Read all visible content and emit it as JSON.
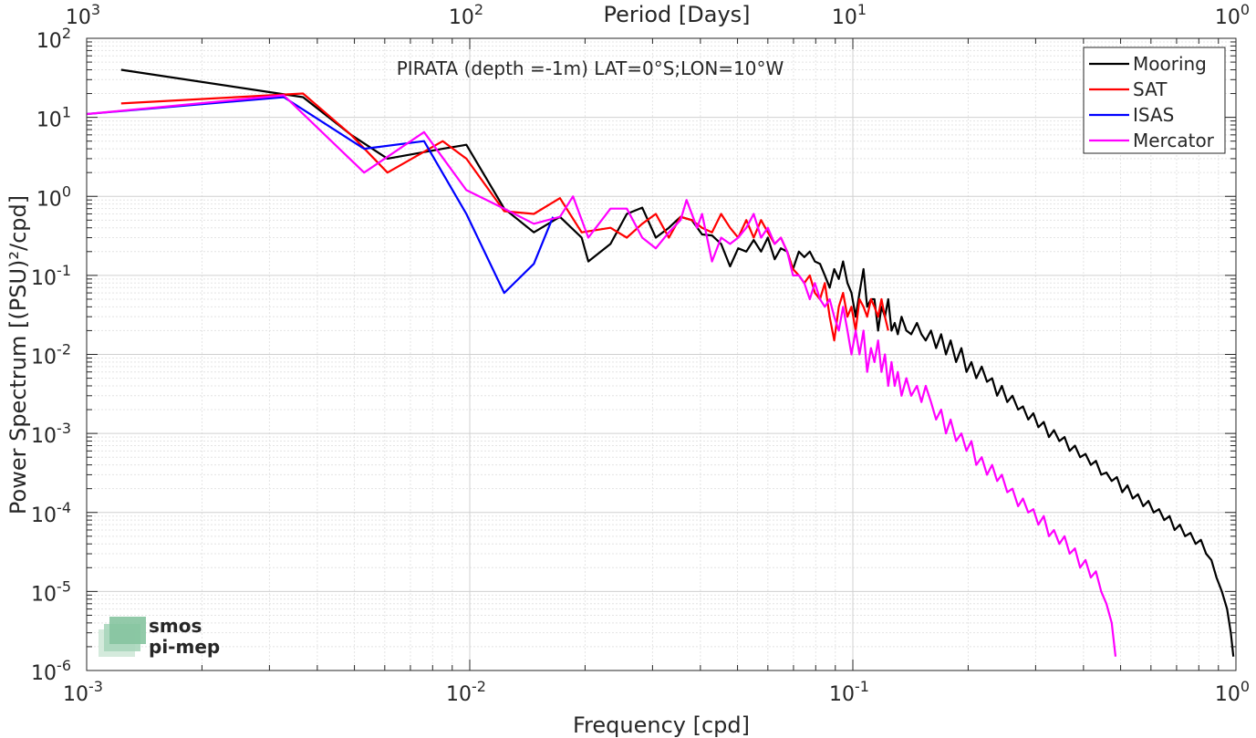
{
  "chart_data": {
    "type": "line",
    "title": "PIRATA (depth =-1m) LAT=0°S;LON=10°W",
    "xlabel": "Frequency [cpd]",
    "ylabel": "Power Spectrum [(PSU)²/cpd]",
    "top_xlabel": "Period [Days]",
    "xscale": "log",
    "yscale": "log",
    "xlim": [
      0.001,
      1
    ],
    "ylim": [
      1e-06,
      100
    ],
    "grid": true,
    "minor_grid": true,
    "legend_position": "top-right",
    "x_ticks": [
      {
        "value": 0.001,
        "base": "10",
        "exp": "-3"
      },
      {
        "value": 0.01,
        "base": "10",
        "exp": "-2"
      },
      {
        "value": 0.1,
        "base": "10",
        "exp": "-1"
      },
      {
        "value": 1,
        "base": "10",
        "exp": "0"
      }
    ],
    "top_x_ticks": [
      {
        "value": 0.001,
        "base": "10",
        "exp": "3"
      },
      {
        "value": 0.01,
        "base": "10",
        "exp": "2"
      },
      {
        "value": 0.1,
        "base": "10",
        "exp": "1"
      },
      {
        "value": 1,
        "base": "10",
        "exp": "0"
      }
    ],
    "y_ticks": [
      {
        "value": 100,
        "base": "10",
        "exp": "2"
      },
      {
        "value": 10,
        "base": "10",
        "exp": "1"
      },
      {
        "value": 1,
        "base": "10",
        "exp": "0"
      },
      {
        "value": 0.1,
        "base": "10",
        "exp": "-1"
      },
      {
        "value": 0.01,
        "base": "10",
        "exp": "-2"
      },
      {
        "value": 0.001,
        "base": "10",
        "exp": "-3"
      },
      {
        "value": 0.0001,
        "base": "10",
        "exp": "-4"
      },
      {
        "value": 1e-05,
        "base": "10",
        "exp": "-5"
      },
      {
        "value": 1e-06,
        "base": "10",
        "exp": "-6"
      }
    ],
    "series": [
      {
        "name": "Mooring",
        "color": "#000000",
        "points": [
          [
            0.00123,
            40
          ],
          [
            0.00367,
            18
          ],
          [
            0.0049,
            6
          ],
          [
            0.0061,
            3
          ],
          [
            0.0085,
            4
          ],
          [
            0.0098,
            4.5
          ],
          [
            0.0123,
            0.7
          ],
          [
            0.0147,
            0.35
          ],
          [
            0.0172,
            0.55
          ],
          [
            0.0196,
            0.3
          ],
          [
            0.0204,
            0.15
          ],
          [
            0.0233,
            0.25
          ],
          [
            0.0257,
            0.6
          ],
          [
            0.0282,
            0.72
          ],
          [
            0.0306,
            0.3
          ],
          [
            0.0331,
            0.4
          ],
          [
            0.0355,
            0.55
          ],
          [
            0.038,
            0.5
          ],
          [
            0.0404,
            0.33
          ],
          [
            0.0429,
            0.32
          ],
          [
            0.0453,
            0.25
          ],
          [
            0.0478,
            0.13
          ],
          [
            0.0502,
            0.22
          ],
          [
            0.0527,
            0.2
          ],
          [
            0.0551,
            0.28
          ],
          [
            0.0576,
            0.2
          ],
          [
            0.06,
            0.3
          ],
          [
            0.0625,
            0.16
          ],
          [
            0.0649,
            0.22
          ],
          [
            0.0674,
            0.2
          ],
          [
            0.0698,
            0.12
          ],
          [
            0.0723,
            0.2
          ],
          [
            0.0747,
            0.17
          ],
          [
            0.0772,
            0.2
          ],
          [
            0.0796,
            0.15
          ],
          [
            0.0821,
            0.14
          ],
          [
            0.0845,
            0.1
          ],
          [
            0.087,
            0.07
          ],
          [
            0.0894,
            0.12
          ],
          [
            0.0919,
            0.09
          ],
          [
            0.0943,
            0.15
          ],
          [
            0.0968,
            0.08
          ],
          [
            0.0992,
            0.06
          ],
          [
            0.1017,
            0.03
          ],
          [
            0.1041,
            0.06
          ],
          [
            0.1066,
            0.12
          ],
          [
            0.109,
            0.04
          ],
          [
            0.1115,
            0.05
          ],
          [
            0.1139,
            0.05
          ],
          [
            0.1164,
            0.02
          ],
          [
            0.1188,
            0.04
          ],
          [
            0.1213,
            0.03
          ],
          [
            0.1237,
            0.05
          ],
          [
            0.1262,
            0.02
          ],
          [
            0.1286,
            0.025
          ],
          [
            0.131,
            0.018
          ],
          [
            0.134,
            0.03
          ],
          [
            0.138,
            0.02
          ],
          [
            0.142,
            0.018
          ],
          [
            0.147,
            0.025
          ],
          [
            0.151,
            0.018
          ],
          [
            0.155,
            0.015
          ],
          [
            0.16,
            0.02
          ],
          [
            0.165,
            0.012
          ],
          [
            0.17,
            0.018
          ],
          [
            0.175,
            0.01
          ],
          [
            0.18,
            0.015
          ],
          [
            0.186,
            0.008
          ],
          [
            0.192,
            0.012
          ],
          [
            0.198,
            0.006
          ],
          [
            0.204,
            0.008
          ],
          [
            0.21,
            0.005
          ],
          [
            0.217,
            0.007
          ],
          [
            0.224,
            0.0045
          ],
          [
            0.231,
            0.005
          ],
          [
            0.238,
            0.003
          ],
          [
            0.245,
            0.004
          ],
          [
            0.253,
            0.0025
          ],
          [
            0.261,
            0.003
          ],
          [
            0.27,
            0.002
          ],
          [
            0.278,
            0.0022
          ],
          [
            0.287,
            0.0015
          ],
          [
            0.296,
            0.0018
          ],
          [
            0.305,
            0.0012
          ],
          [
            0.315,
            0.0014
          ],
          [
            0.325,
            0.0009
          ],
          [
            0.335,
            0.0011
          ],
          [
            0.346,
            0.0008
          ],
          [
            0.357,
            0.0009
          ],
          [
            0.368,
            0.0006
          ],
          [
            0.38,
            0.0007
          ],
          [
            0.392,
            0.0005
          ],
          [
            0.405,
            0.00055
          ],
          [
            0.418,
            0.0004
          ],
          [
            0.431,
            0.00045
          ],
          [
            0.445,
            0.0003
          ],
          [
            0.459,
            0.00032
          ],
          [
            0.474,
            0.00025
          ],
          [
            0.489,
            0.00028
          ],
          [
            0.505,
            0.00018
          ],
          [
            0.521,
            0.00022
          ],
          [
            0.538,
            0.00015
          ],
          [
            0.555,
            0.00017
          ],
          [
            0.573,
            0.00012
          ],
          [
            0.591,
            0.00014
          ],
          [
            0.61,
            0.0001
          ],
          [
            0.63,
            0.00011
          ],
          [
            0.65,
            8e-05
          ],
          [
            0.671,
            9e-05
          ],
          [
            0.692,
            6e-05
          ],
          [
            0.714,
            7e-05
          ],
          [
            0.737,
            5e-05
          ],
          [
            0.761,
            5.5e-05
          ],
          [
            0.785,
            4e-05
          ],
          [
            0.81,
            4.5e-05
          ],
          [
            0.836,
            3e-05
          ],
          [
            0.863,
            2.5e-05
          ],
          [
            0.89,
            1.5e-05
          ],
          [
            0.919,
            1e-05
          ],
          [
            0.948,
            6e-06
          ],
          [
            0.97,
            3e-06
          ],
          [
            0.985,
            1.5e-06
          ]
        ]
      },
      {
        "name": "SAT",
        "color": "#ff0000",
        "points": [
          [
            0.00123,
            15
          ],
          [
            0.00367,
            20
          ],
          [
            0.0049,
            6
          ],
          [
            0.0061,
            2
          ],
          [
            0.0085,
            5
          ],
          [
            0.0098,
            3
          ],
          [
            0.0123,
            0.65
          ],
          [
            0.0147,
            0.6
          ],
          [
            0.0172,
            0.95
          ],
          [
            0.0196,
            0.35
          ],
          [
            0.0233,
            0.4
          ],
          [
            0.0257,
            0.3
          ],
          [
            0.0282,
            0.45
          ],
          [
            0.0306,
            0.6
          ],
          [
            0.0331,
            0.3
          ],
          [
            0.0355,
            0.55
          ],
          [
            0.038,
            0.5
          ],
          [
            0.0404,
            0.4
          ],
          [
            0.0429,
            0.35
          ],
          [
            0.0453,
            0.6
          ],
          [
            0.0478,
            0.4
          ],
          [
            0.0502,
            0.3
          ],
          [
            0.0527,
            0.5
          ],
          [
            0.0551,
            0.3
          ],
          [
            0.0576,
            0.5
          ],
          [
            0.06,
            0.35
          ],
          [
            0.0625,
            0.25
          ],
          [
            0.0649,
            0.3
          ],
          [
            0.0674,
            0.2
          ],
          [
            0.0698,
            0.12
          ],
          [
            0.0723,
            0.1
          ],
          [
            0.0747,
            0.08
          ],
          [
            0.0772,
            0.1
          ],
          [
            0.0796,
            0.06
          ],
          [
            0.0821,
            0.05
          ],
          [
            0.0845,
            0.08
          ],
          [
            0.087,
            0.03
          ],
          [
            0.0894,
            0.015
          ],
          [
            0.0919,
            0.04
          ],
          [
            0.0943,
            0.06
          ],
          [
            0.0968,
            0.03
          ],
          [
            0.0992,
            0.04
          ],
          [
            0.1017,
            0.02
          ],
          [
            0.1041,
            0.05
          ],
          [
            0.1066,
            0.04
          ],
          [
            0.109,
            0.03
          ],
          [
            0.1115,
            0.05
          ],
          [
            0.1139,
            0.04
          ],
          [
            0.1164,
            0.03
          ],
          [
            0.1188,
            0.05
          ],
          [
            0.1213,
            0.03
          ],
          [
            0.1237,
            0.02
          ]
        ]
      },
      {
        "name": "ISAS",
        "color": "#0000ff",
        "points": [
          [
            0.001,
            11
          ],
          [
            0.00327,
            18
          ],
          [
            0.0053,
            4
          ],
          [
            0.0076,
            5
          ],
          [
            0.0098,
            0.6
          ],
          [
            0.0123,
            0.06
          ],
          [
            0.0147,
            0.14
          ],
          [
            0.0165,
            0.55
          ]
        ]
      },
      {
        "name": "Mercator",
        "color": "#ff00ff",
        "points": [
          [
            0.001,
            11
          ],
          [
            0.00327,
            19
          ],
          [
            0.0053,
            2
          ],
          [
            0.0076,
            6.5
          ],
          [
            0.0098,
            1.2
          ],
          [
            0.0123,
            0.7
          ],
          [
            0.0147,
            0.45
          ],
          [
            0.0172,
            0.55
          ],
          [
            0.0186,
            1
          ],
          [
            0.0204,
            0.3
          ],
          [
            0.0233,
            0.7
          ],
          [
            0.0257,
            0.7
          ],
          [
            0.0282,
            0.3
          ],
          [
            0.0306,
            0.22
          ],
          [
            0.0331,
            0.35
          ],
          [
            0.0355,
            0.5
          ],
          [
            0.0368,
            0.9
          ],
          [
            0.0392,
            0.4
          ],
          [
            0.0404,
            0.6
          ],
          [
            0.0429,
            0.15
          ],
          [
            0.0453,
            0.3
          ],
          [
            0.0478,
            0.25
          ],
          [
            0.0502,
            0.3
          ],
          [
            0.0527,
            0.4
          ],
          [
            0.0551,
            0.6
          ],
          [
            0.0576,
            0.3
          ],
          [
            0.06,
            0.4
          ],
          [
            0.0625,
            0.25
          ],
          [
            0.0649,
            0.3
          ],
          [
            0.0674,
            0.2
          ],
          [
            0.0698,
            0.1
          ],
          [
            0.0723,
            0.1
          ],
          [
            0.0747,
            0.08
          ],
          [
            0.0772,
            0.05
          ],
          [
            0.0796,
            0.08
          ],
          [
            0.0821,
            0.05
          ],
          [
            0.0845,
            0.04
          ],
          [
            0.087,
            0.05
          ],
          [
            0.0894,
            0.03
          ],
          [
            0.0919,
            0.02
          ],
          [
            0.0943,
            0.04
          ],
          [
            0.0968,
            0.02
          ],
          [
            0.0992,
            0.01
          ],
          [
            0.1017,
            0.02
          ],
          [
            0.1041,
            0.01
          ],
          [
            0.1066,
            0.02
          ],
          [
            0.109,
            0.006
          ],
          [
            0.1115,
            0.012
          ],
          [
            0.1139,
            0.008
          ],
          [
            0.1164,
            0.015
          ],
          [
            0.1188,
            0.006
          ],
          [
            0.1213,
            0.01
          ],
          [
            0.1237,
            0.004
          ],
          [
            0.1262,
            0.008
          ],
          [
            0.1286,
            0.004
          ],
          [
            0.131,
            0.006
          ],
          [
            0.134,
            0.003
          ],
          [
            0.138,
            0.005
          ],
          [
            0.142,
            0.003
          ],
          [
            0.147,
            0.004
          ],
          [
            0.151,
            0.0025
          ],
          [
            0.155,
            0.004
          ],
          [
            0.16,
            0.0025
          ],
          [
            0.165,
            0.0015
          ],
          [
            0.17,
            0.002
          ],
          [
            0.175,
            0.001
          ],
          [
            0.18,
            0.0015
          ],
          [
            0.186,
            0.0008
          ],
          [
            0.192,
            0.001
          ],
          [
            0.198,
            0.0006
          ],
          [
            0.204,
            0.0008
          ],
          [
            0.21,
            0.0004
          ],
          [
            0.217,
            0.0005
          ],
          [
            0.224,
            0.0003
          ],
          [
            0.231,
            0.0004
          ],
          [
            0.238,
            0.00025
          ],
          [
            0.245,
            0.0003
          ],
          [
            0.253,
            0.00018
          ],
          [
            0.261,
            0.0002
          ],
          [
            0.27,
            0.00012
          ],
          [
            0.278,
            0.00015
          ],
          [
            0.287,
            0.0001
          ],
          [
            0.296,
            0.00011
          ],
          [
            0.305,
            7e-05
          ],
          [
            0.315,
            9e-05
          ],
          [
            0.325,
            5e-05
          ],
          [
            0.335,
            6e-05
          ],
          [
            0.346,
            4e-05
          ],
          [
            0.357,
            5e-05
          ],
          [
            0.368,
            3e-05
          ],
          [
            0.38,
            3.5e-05
          ],
          [
            0.392,
            2e-05
          ],
          [
            0.405,
            2.5e-05
          ],
          [
            0.418,
            1.5e-05
          ],
          [
            0.431,
            1.8e-05
          ],
          [
            0.445,
            1e-05
          ],
          [
            0.459,
            7e-06
          ],
          [
            0.474,
            4e-06
          ],
          [
            0.485,
            1.5e-06
          ]
        ]
      }
    ]
  },
  "watermark": {
    "line1": "smos",
    "line2": "pi-mep",
    "color": "#7fbf9f"
  }
}
